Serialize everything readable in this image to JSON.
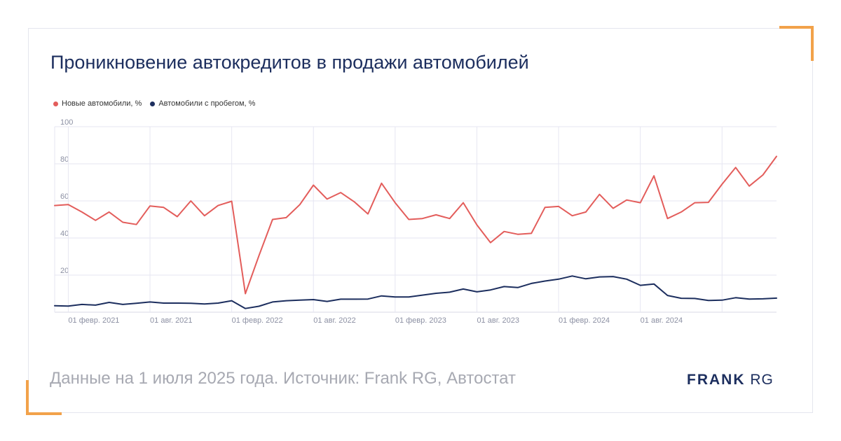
{
  "title": "Проникновение автокредитов в продажи автомобилей",
  "footer": "Данные на 1 июля 2025 года. Источник: Frank RG, Автостат",
  "logo": {
    "bold": "FRANK",
    "light": "RG"
  },
  "colors": {
    "new": "#e35d5b",
    "used": "#1c2e5e",
    "accent": "#f2a24a"
  },
  "chart_data": {
    "type": "line",
    "title": "Проникновение автокредитов в продажи автомобилей",
    "ylim": [
      0,
      100
    ],
    "yticks": [
      "20",
      "40",
      "60",
      "80",
      "100"
    ],
    "grid": true,
    "legend_position": "top-left",
    "x_tick_labels": [
      "01 февр. 2021",
      "01 авг. 2021",
      "01 февр. 2022",
      "01 авг. 2022",
      "01 февр. 2023",
      "01 авг. 2023",
      "01 февр. 2024",
      "01 авг. 2024"
    ],
    "x": [
      "2021-01",
      "2021-02",
      "2021-03",
      "2021-04",
      "2021-05",
      "2021-06",
      "2021-07",
      "2021-08",
      "2021-09",
      "2021-10",
      "2021-11",
      "2021-12",
      "2022-01",
      "2022-02",
      "2022-03",
      "2022-04",
      "2022-05",
      "2022-06",
      "2022-07",
      "2022-08",
      "2022-09",
      "2022-10",
      "2022-11",
      "2022-12",
      "2023-01",
      "2023-02",
      "2023-03",
      "2023-04",
      "2023-05",
      "2023-06",
      "2023-07",
      "2023-08",
      "2023-09",
      "2023-10",
      "2023-11",
      "2023-12",
      "2024-01",
      "2024-02",
      "2024-03",
      "2024-04",
      "2024-05",
      "2024-06",
      "2024-07",
      "2024-08",
      "2024-09",
      "2024-10",
      "2024-11",
      "2024-12",
      "2025-01",
      "2025-02",
      "2025-03",
      "2025-04",
      "2025-05",
      "2025-06"
    ],
    "series": [
      {
        "name": "Новые автомобили, %",
        "color": "#e35d5b",
        "values": [
          57.5,
          58.0,
          54.0,
          49.5,
          54.0,
          48.5,
          47.3,
          57.3,
          56.5,
          51.5,
          60.0,
          52.0,
          57.5,
          59.8,
          10.0,
          30.5,
          50.0,
          51.0,
          58.0,
          68.5,
          61.0,
          64.5,
          59.5,
          53.0,
          69.5,
          59.0,
          50.0,
          50.5,
          52.5,
          50.5,
          59.0,
          47.0,
          37.5,
          43.5,
          42.0,
          42.5,
          56.5,
          57.0,
          52.0,
          54.0,
          63.5,
          56.0,
          60.5,
          59.0,
          73.5,
          50.5,
          54.0,
          59.0,
          59.2,
          69.0,
          78.0,
          68.0,
          74.0,
          84.0
        ]
      },
      {
        "name": "Автомобили с пробегом, %",
        "color": "#1c2e5e",
        "values": [
          3.5,
          3.3,
          4.2,
          3.8,
          5.3,
          4.2,
          4.8,
          5.5,
          4.9,
          4.9,
          4.8,
          4.4,
          4.9,
          6.2,
          2.0,
          3.2,
          5.5,
          6.2,
          6.5,
          6.8,
          5.8,
          7.0,
          7.0,
          7.1,
          8.8,
          8.2,
          8.2,
          9.2,
          10.2,
          10.8,
          12.5,
          11.0,
          12.0,
          13.8,
          13.3,
          15.5,
          16.8,
          17.8,
          19.5,
          18.0,
          19.0,
          19.2,
          17.8,
          14.5,
          15.2,
          9.0,
          7.5,
          7.4,
          6.3,
          6.5,
          7.8,
          7.1,
          7.2,
          7.6
        ]
      }
    ]
  }
}
